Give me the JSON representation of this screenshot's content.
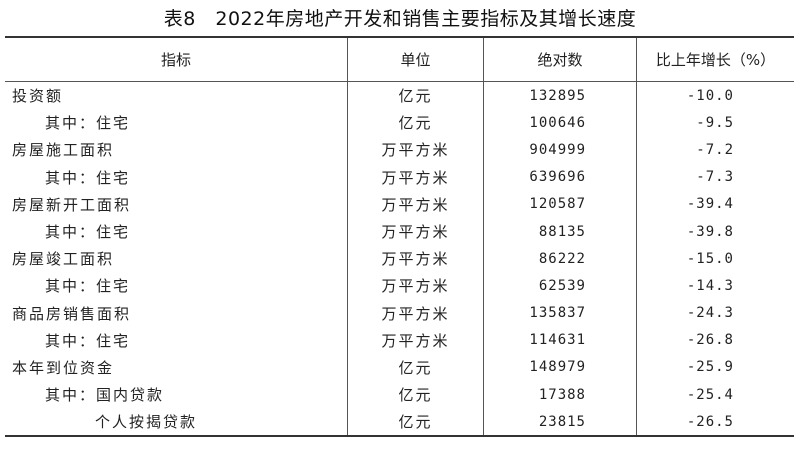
{
  "title": "表8　2022年房地产开发和销售主要指标及其增长速度",
  "headers": [
    "指标",
    "单位",
    "绝对数",
    "比上年增长（%）"
  ],
  "rows": [
    {
      "indicator": "投资额",
      "level": 0,
      "unit": "亿元",
      "value": "132895",
      "growth": "-10.0"
    },
    {
      "indicator": "其中：住宅",
      "level": 1,
      "unit": "亿元",
      "value": "100646",
      "growth": "-9.5"
    },
    {
      "indicator": "房屋施工面积",
      "level": 0,
      "unit": "万平方米",
      "value": "904999",
      "growth": "-7.2"
    },
    {
      "indicator": "其中：住宅",
      "level": 1,
      "unit": "万平方米",
      "value": "639696",
      "growth": "-7.3"
    },
    {
      "indicator": "房屋新开工面积",
      "level": 0,
      "unit": "万平方米",
      "value": "120587",
      "growth": "-39.4"
    },
    {
      "indicator": "其中：住宅",
      "level": 1,
      "unit": "万平方米",
      "value": "88135",
      "growth": "-39.8"
    },
    {
      "indicator": "房屋竣工面积",
      "level": 0,
      "unit": "万平方米",
      "value": "86222",
      "growth": "-15.0"
    },
    {
      "indicator": "其中：住宅",
      "level": 1,
      "unit": "万平方米",
      "value": "62539",
      "growth": "-14.3"
    },
    {
      "indicator": "商品房销售面积",
      "level": 0,
      "unit": "万平方米",
      "value": "135837",
      "growth": "-24.3"
    },
    {
      "indicator": "其中：住宅",
      "level": 1,
      "unit": "万平方米",
      "value": "114631",
      "growth": "-26.8"
    },
    {
      "indicator": "本年到位资金",
      "level": 0,
      "unit": "亿元",
      "value": "148979",
      "growth": "-25.9"
    },
    {
      "indicator": "其中：国内贷款",
      "level": 1,
      "unit": "亿元",
      "value": "17388",
      "growth": "-25.4"
    },
    {
      "indicator": "个人按揭贷款",
      "level": 2,
      "unit": "亿元",
      "value": "23815",
      "growth": "-26.5"
    }
  ]
}
